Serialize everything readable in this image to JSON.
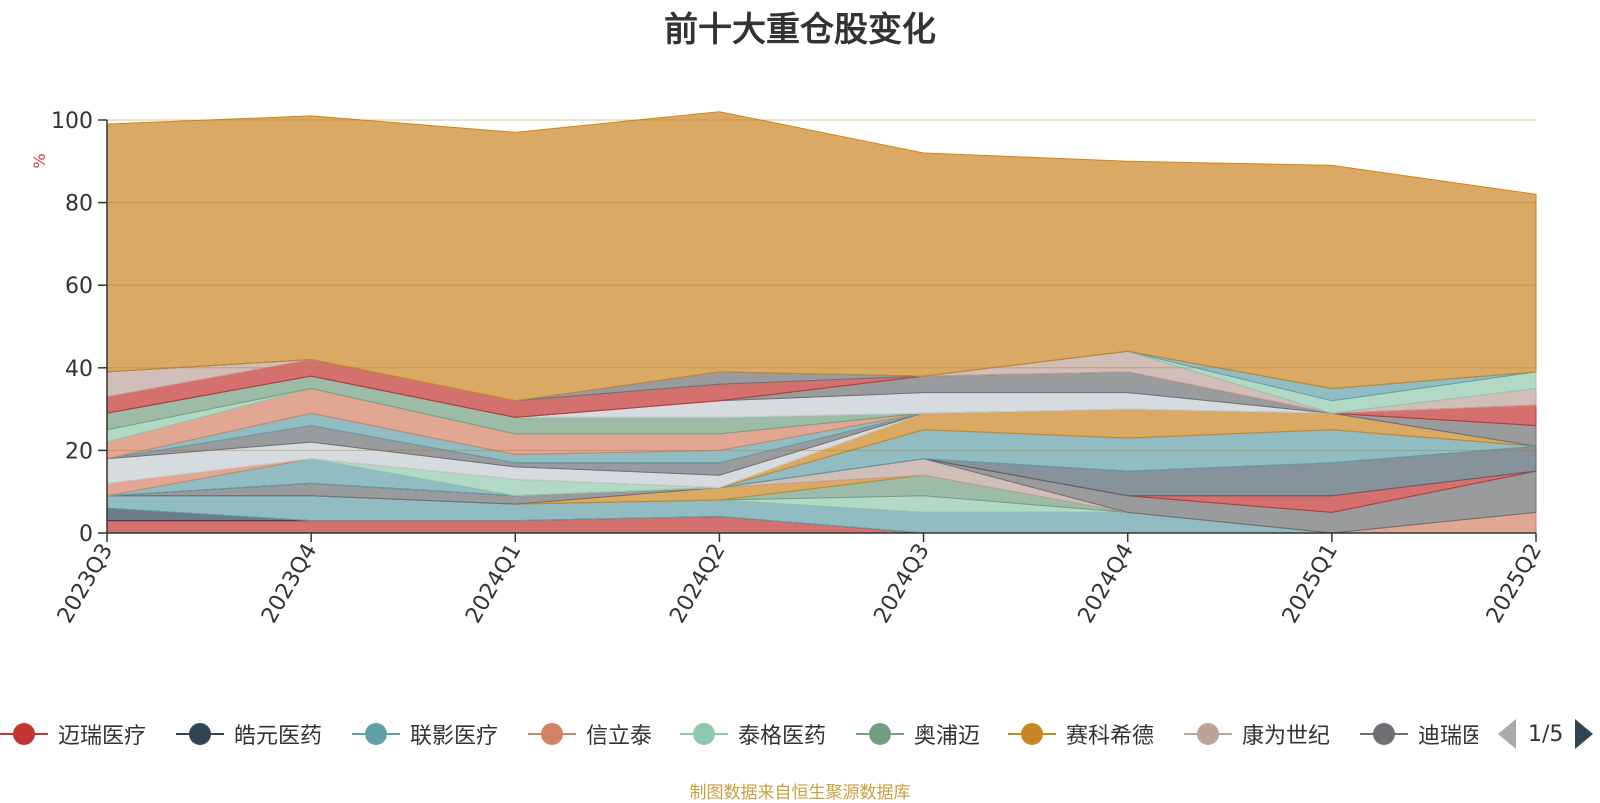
{
  "title": "前十大重仓股变化",
  "source": "制图数据来自恒生聚源数据库",
  "legend_page": "1/5",
  "chart_data": {
    "type": "area",
    "stacked": true,
    "title": "前十大重仓股变化",
    "ylabel": "%",
    "ylim": [
      0,
      100
    ],
    "yticks": [
      0,
      20,
      40,
      60,
      80,
      100
    ],
    "grid": true,
    "legend_position": "bottom",
    "categories": [
      "2023Q3",
      "2023Q4",
      "2024Q1",
      "2024Q2",
      "2024Q3",
      "2024Q4",
      "2025Q1",
      "2025Q2"
    ],
    "series": [
      {
        "name": "迈瑞医疗",
        "color": "#c23531",
        "values": [
          3,
          3,
          3,
          4,
          0,
          0,
          0,
          0
        ]
      },
      {
        "name": "皓元医药",
        "color": "#2f4554",
        "values": [
          3,
          0,
          0,
          0,
          0,
          0,
          0,
          0
        ]
      },
      {
        "name": "联影医疗",
        "color": "#61a0a8",
        "values": [
          3,
          6,
          4,
          4,
          5,
          5,
          0,
          0
        ]
      },
      {
        "name": "信立泰",
        "color": "#d48265",
        "values": [
          0,
          0,
          0,
          0,
          0,
          0,
          0,
          5
        ]
      },
      {
        "name": "泰格医药",
        "color": "#91c7ae",
        "values": [
          0,
          0,
          0,
          0,
          4,
          0,
          0,
          0
        ]
      },
      {
        "name": "奥浦迈",
        "color": "#749f83",
        "values": [
          0,
          0,
          0,
          0,
          5,
          0,
          0,
          0
        ]
      },
      {
        "name": "赛科希德",
        "color": "#ca8622",
        "values": [
          0,
          0,
          0,
          3,
          0,
          0,
          0,
          0
        ]
      },
      {
        "name": "康为世纪",
        "color": "#bda29a",
        "values": [
          0,
          0,
          0,
          0,
          4,
          0,
          0,
          0
        ]
      },
      {
        "name": "迪瑞医疗",
        "color": "#6e7074",
        "values": [
          0,
          3,
          2,
          0,
          0,
          4,
          5,
          10
        ]
      },
      {
        "name": "",
        "color": "#c23531",
        "values": [
          0,
          0,
          0,
          0,
          0,
          0,
          4,
          0
        ]
      },
      {
        "name": "",
        "color": "#546570",
        "values": [
          0,
          0,
          0,
          0,
          0,
          6,
          8,
          6
        ]
      },
      {
        "name": "",
        "color": "#61a0a8",
        "values": [
          0,
          6,
          0,
          0,
          7,
          8,
          8,
          0
        ]
      },
      {
        "name": "",
        "color": "#91c7ae",
        "values": [
          0,
          0,
          4,
          0,
          0,
          0,
          0,
          0
        ]
      },
      {
        "name": "",
        "color": "#d48265",
        "values": [
          3,
          0,
          0,
          0,
          0,
          0,
          0,
          0
        ]
      },
      {
        "name": "",
        "color": "#ca8622",
        "values": [
          0,
          0,
          0,
          0,
          4,
          7,
          4,
          0
        ]
      },
      {
        "name": "",
        "color": "#c4ccd3",
        "values": [
          6,
          4,
          3,
          3,
          0,
          0,
          0,
          0
        ]
      },
      {
        "name": "",
        "color": "#6e7074",
        "values": [
          0,
          4,
          1,
          3,
          0,
          0,
          0,
          0
        ]
      },
      {
        "name": "",
        "color": "#61a0a8",
        "values": [
          0,
          3,
          2,
          3,
          0,
          0,
          0,
          0
        ]
      },
      {
        "name": "",
        "color": "#d48265",
        "values": [
          4,
          6,
          5,
          4,
          0,
          0,
          0,
          0
        ]
      },
      {
        "name": "",
        "color": "#91c7ae",
        "values": [
          3,
          0,
          0,
          0,
          0,
          0,
          0,
          0
        ]
      },
      {
        "name": "",
        "color": "#749f83",
        "values": [
          4,
          3,
          4,
          4,
          0,
          0,
          0,
          0
        ]
      },
      {
        "name": "",
        "color": "#c4ccd3",
        "values": [
          0,
          0,
          0,
          4,
          5,
          4,
          0,
          0
        ]
      },
      {
        "name": "",
        "color": "#6e7074",
        "values": [
          0,
          0,
          0,
          0,
          4,
          5,
          0,
          5
        ]
      },
      {
        "name": "",
        "color": "#c23531",
        "values": [
          4,
          4,
          4,
          4,
          0,
          0,
          0,
          5
        ]
      },
      {
        "name": "",
        "color": "#bda29a",
        "values": [
          6,
          0,
          0,
          0,
          0,
          5,
          0,
          4
        ]
      },
      {
        "name": "",
        "color": "#91c7ae",
        "values": [
          0,
          0,
          0,
          0,
          0,
          0,
          3,
          4
        ]
      },
      {
        "name": "",
        "color": "#61a0a8",
        "values": [
          0,
          0,
          0,
          0,
          0,
          0,
          3,
          0
        ]
      },
      {
        "name": "",
        "color": "#6e7074",
        "values": [
          0,
          0,
          0,
          3,
          0,
          0,
          0,
          0
        ]
      },
      {
        "name": "",
        "color": "#ca8622",
        "values": [
          60,
          59,
          65,
          63,
          54,
          46,
          54,
          43
        ]
      }
    ]
  }
}
